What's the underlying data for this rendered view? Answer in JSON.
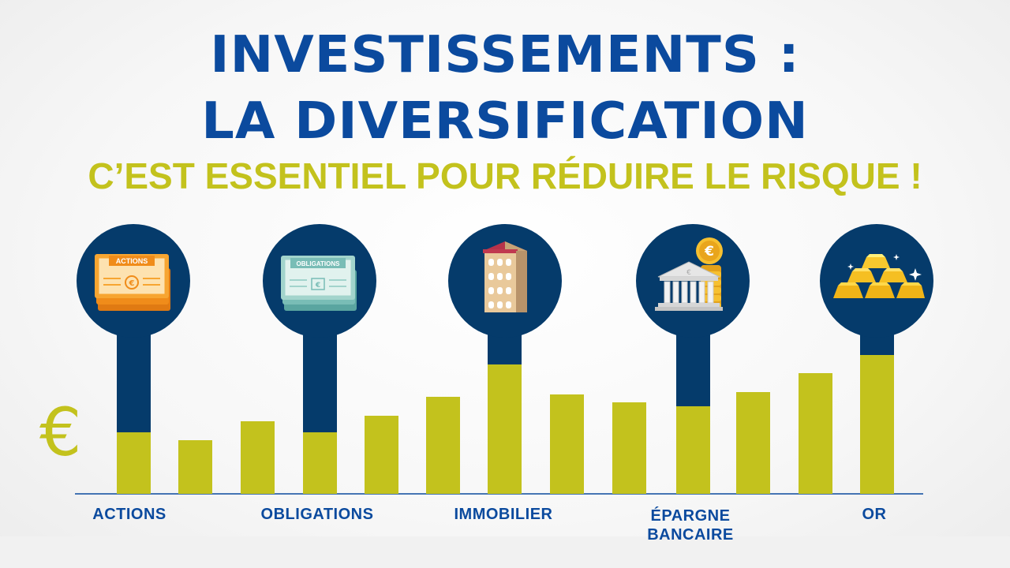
{
  "title": {
    "line1": "INVESTISSEMENTS :",
    "line2": "LA DIVERSIFICATION",
    "subtitle": "C’EST ESSENTIEL POUR RÉDUIRE LE RISQUE !"
  },
  "categories": [
    {
      "label": "ACTIONS",
      "icon": "stock-certificate-icon",
      "icon_text": "ACTIONS"
    },
    {
      "label": "OBLIGATIONS",
      "icon": "bond-certificate-icon",
      "icon_text": "OBLIGATIONS"
    },
    {
      "label": "IMMOBILIER",
      "icon": "building-icon"
    },
    {
      "label": "ÉPARGNE\nBANCAIRE",
      "icon": "bank-coins-icon"
    },
    {
      "label": "OR",
      "icon": "gold-bars-icon"
    }
  ],
  "currency_symbol": "€",
  "colors": {
    "blue": "#0b4a9e",
    "navy": "#053b6b",
    "olive": "#c3c21d",
    "background": "#f7f7f7"
  }
}
